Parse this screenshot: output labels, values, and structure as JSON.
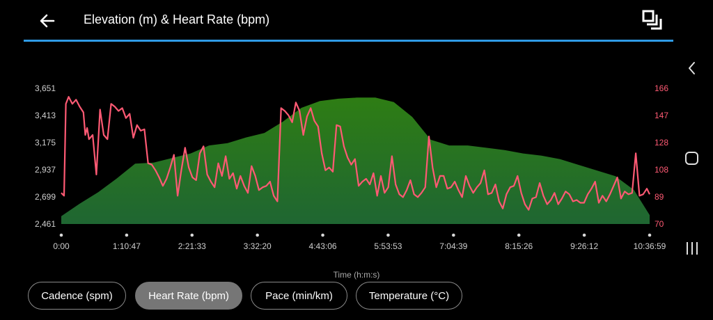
{
  "header": {
    "title": "Elevation (m) & Heart Rate (bpm)"
  },
  "xaxis_title": "Time (h:m:s)",
  "chips": [
    {
      "label": "Cadence (spm)",
      "active": false
    },
    {
      "label": "Heart Rate (bpm)",
      "active": true
    },
    {
      "label": "Pace (min/km)",
      "active": false
    },
    {
      "label": "Temperature (°C)",
      "active": false
    }
  ],
  "colors": {
    "heart_rate": "#ff5a74",
    "elevation_top": "#2e7d14",
    "elevation_bottom": "#1f6632",
    "accent_line": "#2f9be6",
    "axis_text": "#cfcfcf"
  },
  "icons": {
    "back": "arrow-left",
    "fullscreen": "exit-fullscreen",
    "nav_back": "chevron-left",
    "nav_home": "rounded-square",
    "nav_recents": "three-bars"
  },
  "chart_data": {
    "type": "area+line",
    "x_unit": "h:m:s",
    "x_ticks": [
      "0:00",
      "1:10:47",
      "2:21:33",
      "3:32:20",
      "4:43:06",
      "5:53:53",
      "7:04:39",
      "8:15:26",
      "9:26:12",
      "10:36:59"
    ],
    "left_axis": {
      "name": "Elevation",
      "unit": "m",
      "ticks": [
        "3,651",
        "3,413",
        "3,175",
        "2,937",
        "2,699",
        "2,461"
      ],
      "ylim": [
        2461,
        3651
      ]
    },
    "right_axis": {
      "name": "Heart Rate",
      "unit": "bpm",
      "ticks": [
        "166",
        "147",
        "128",
        "108",
        "89",
        "70"
      ],
      "ylim": [
        70,
        166
      ]
    },
    "series": [
      {
        "name": "Elevation (m)",
        "kind": "area",
        "x_min": [
          0,
          20,
          40,
          60,
          80,
          100,
          120,
          140,
          160,
          180,
          200,
          220,
          240,
          260,
          280,
          300,
          320,
          340,
          360,
          380,
          400,
          420,
          440,
          460,
          480,
          500,
          520,
          540,
          560,
          580,
          600,
          620,
          637
        ],
        "values": [
          2530,
          2640,
          2740,
          2860,
          2990,
          3000,
          3040,
          3080,
          3150,
          3170,
          3220,
          3260,
          3360,
          3480,
          3540,
          3560,
          3570,
          3570,
          3530,
          3400,
          3200,
          3150,
          3150,
          3130,
          3110,
          3080,
          3060,
          3030,
          2980,
          2930,
          2880,
          2760,
          2540
        ]
      },
      {
        "name": "Heart Rate (bpm)",
        "kind": "line",
        "x_min": [
          0,
          3,
          5,
          8,
          12,
          16,
          20,
          24,
          26,
          28,
          30,
          34,
          38,
          42,
          46,
          50,
          54,
          58,
          62,
          66,
          70,
          74,
          78,
          82,
          86,
          90,
          94,
          98,
          102,
          106,
          110,
          114,
          118,
          122,
          126,
          130,
          134,
          138,
          142,
          146,
          150,
          154,
          158,
          162,
          166,
          170,
          174,
          178,
          182,
          186,
          190,
          194,
          198,
          202,
          206,
          210,
          214,
          218,
          222,
          226,
          230,
          234,
          238,
          242,
          246,
          250,
          254,
          258,
          262,
          266,
          270,
          274,
          278,
          282,
          286,
          290,
          294,
          298,
          302,
          306,
          310,
          314,
          318,
          322,
          326,
          330,
          334,
          338,
          342,
          346,
          350,
          354,
          358,
          362,
          366,
          370,
          374,
          378,
          382,
          386,
          390,
          394,
          398,
          402,
          406,
          410,
          414,
          418,
          422,
          426,
          430,
          434,
          438,
          442,
          446,
          450,
          454,
          458,
          462,
          466,
          470,
          474,
          478,
          482,
          486,
          490,
          494,
          498,
          502,
          506,
          510,
          514,
          518,
          522,
          526,
          530,
          534,
          538,
          542,
          546,
          550,
          554,
          558,
          562,
          566,
          570,
          574,
          578,
          582,
          586,
          590,
          594,
          598,
          602,
          606,
          610,
          614,
          618,
          622,
          626,
          630,
          634,
          637
        ],
        "values": [
          92,
          90,
          155,
          160,
          155,
          158,
          153,
          149,
          133,
          138,
          130,
          133,
          105,
          151,
          133,
          130,
          155,
          153,
          150,
          152,
          145,
          148,
          131,
          140,
          136,
          137,
          113,
          112,
          108,
          103,
          97,
          102,
          110,
          119,
          90,
          108,
          124,
          110,
          103,
          101,
          120,
          125,
          105,
          100,
          96,
          113,
          104,
          118,
          102,
          106,
          95,
          104,
          97,
          92,
          111,
          104,
          94,
          96,
          97,
          100,
          90,
          86,
          152,
          150,
          147,
          142,
          156,
          150,
          133,
          146,
          152,
          143,
          139,
          120,
          108,
          110,
          107,
          140,
          139,
          125,
          117,
          112,
          116,
          97,
          100,
          102,
          98,
          106,
          90,
          104,
          92,
          96,
          118,
          98,
          91,
          89,
          94,
          101,
          91,
          89,
          92,
          96,
          132,
          110,
          96,
          104,
          104,
          95,
          96,
          100,
          94,
          89,
          104,
          97,
          92,
          96,
          99,
          108,
          91,
          92,
          98,
          86,
          81,
          91,
          96,
          97,
          104,
          92,
          84,
          80,
          88,
          89,
          99,
          90,
          84,
          87,
          92,
          84,
          88,
          93,
          91,
          86,
          87,
          85,
          85,
          91,
          95,
          100,
          85,
          90,
          86,
          91,
          97,
          103,
          88,
          93,
          91,
          92,
          120,
          90,
          91,
          95,
          91
        ]
      }
    ],
    "grid": false,
    "legend": "none"
  }
}
